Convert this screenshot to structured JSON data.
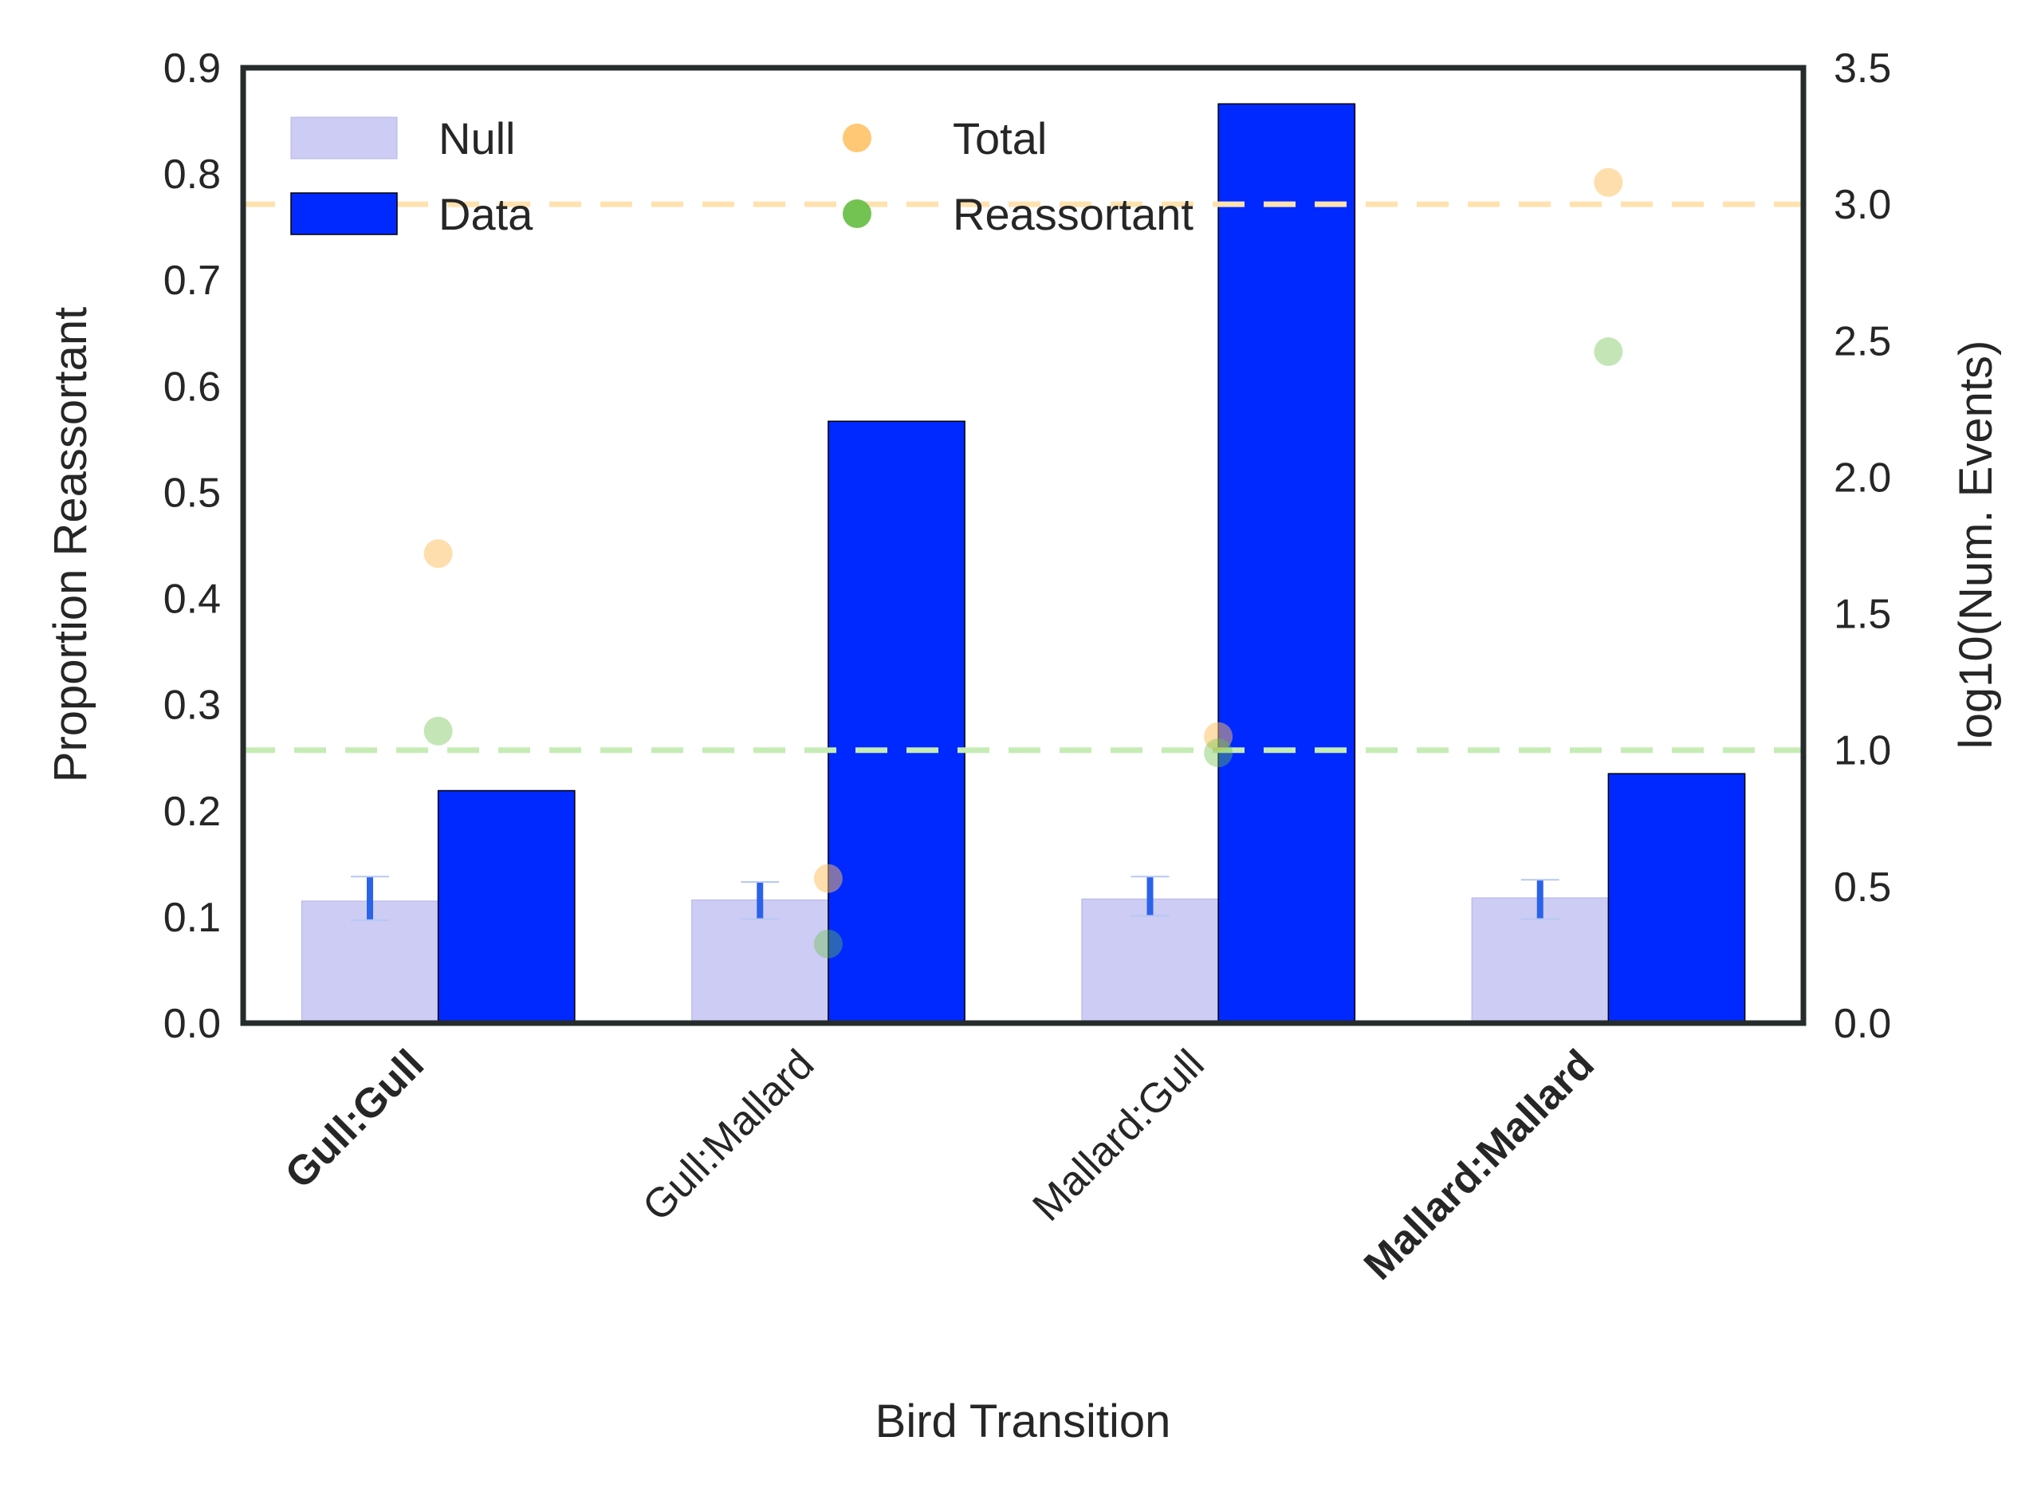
{
  "chart_data": {
    "type": "bar",
    "xlabel": "Bird Transition",
    "ylabel": "Proportion Reassortant",
    "y2label": "log10(Num. Events)",
    "ylim": [
      0,
      0.9
    ],
    "y2lim": [
      0,
      3.5
    ],
    "yticks": [
      "0.0",
      "0.1",
      "0.2",
      "0.3",
      "0.4",
      "0.5",
      "0.6",
      "0.7",
      "0.8",
      "0.9"
    ],
    "y2ticks": [
      "0.0",
      "0.5",
      "1.0",
      "1.5",
      "2.0",
      "2.5",
      "3.0",
      "3.5"
    ],
    "categories": [
      "Gull:Gull",
      "Gull:Mallard",
      "Mallard:Gull",
      "Mallard:Mallard"
    ],
    "bold_categories": [
      true,
      false,
      false,
      true
    ],
    "grid": false,
    "legend_position": "top-left",
    "series": [
      {
        "name": "Null",
        "kind": "bar",
        "axis": "left",
        "color": "#ccccf5",
        "values": [
          0.115,
          0.116,
          0.117,
          0.118
        ],
        "error_low": [
          0.097,
          0.098,
          0.101,
          0.098
        ],
        "error_high": [
          0.138,
          0.133,
          0.138,
          0.135
        ],
        "error_color": "#2b63e8"
      },
      {
        "name": "Data",
        "kind": "bar",
        "axis": "left",
        "color": "#0029ff",
        "values": [
          0.219,
          0.567,
          0.866,
          0.235
        ]
      },
      {
        "name": "Total",
        "kind": "scatter",
        "axis": "right",
        "color": "#ffbe5c",
        "values": [
          1.72,
          0.53,
          1.05,
          3.08
        ]
      },
      {
        "name": "Reassortant",
        "kind": "scatter",
        "axis": "right",
        "color": "#6cc04a",
        "values": [
          1.07,
          0.29,
          0.99,
          2.46
        ]
      }
    ],
    "reference_lines": [
      {
        "axis": "right",
        "value": 3.0,
        "color": "#ffe2b0",
        "style": "dashed"
      },
      {
        "axis": "right",
        "value": 1.0,
        "color": "#c5ecb4",
        "style": "dashed"
      }
    ]
  }
}
